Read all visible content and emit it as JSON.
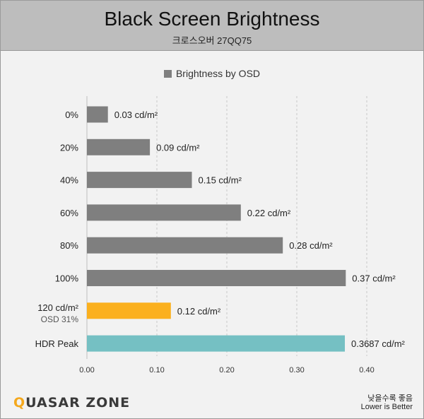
{
  "header": {
    "title": "Black Screen Brightness",
    "subtitle": "크로스오버 27QQ75"
  },
  "footer": {
    "logo_prefix": "Q",
    "logo_rest": "UASAR ZONE",
    "note_ko": "낮을수록 좋음",
    "note_en": "Lower is Better"
  },
  "chart_data": {
    "type": "bar",
    "orientation": "horizontal",
    "title": "Black Screen Brightness",
    "subtitle": "크로스오버 27QQ75",
    "legend": [
      "Brightness by OSD"
    ],
    "legend_position": "top",
    "categories": [
      "0%",
      "20%",
      "40%",
      "60%",
      "80%",
      "100%",
      "120 cd/m²",
      "HDR Peak"
    ],
    "category_sublabels": [
      "",
      "",
      "",
      "",
      "",
      "",
      "OSD 31%",
      ""
    ],
    "values": [
      0.03,
      0.09,
      0.15,
      0.22,
      0.28,
      0.37,
      0.12,
      0.3687
    ],
    "value_labels": [
      "0.03 cd/m²",
      "0.09 cd/m²",
      "0.15 cd/m²",
      "0.22 cd/m²",
      "0.28 cd/m²",
      "0.37 cd/m²",
      "0.12 cd/m²",
      "0.3687 cd/m²"
    ],
    "bar_colors": [
      "#7f7f7f",
      "#7f7f7f",
      "#7f7f7f",
      "#7f7f7f",
      "#7f7f7f",
      "#7f7f7f",
      "#fbb01e",
      "#75c0c3"
    ],
    "xlim": [
      0,
      0.4
    ],
    "xticks": [
      0.0,
      0.1,
      0.2,
      0.3,
      0.4
    ],
    "xtick_labels": [
      "0.00",
      "0.10",
      "0.20",
      "0.30",
      "0.40"
    ],
    "grid": "vertical dashed"
  }
}
